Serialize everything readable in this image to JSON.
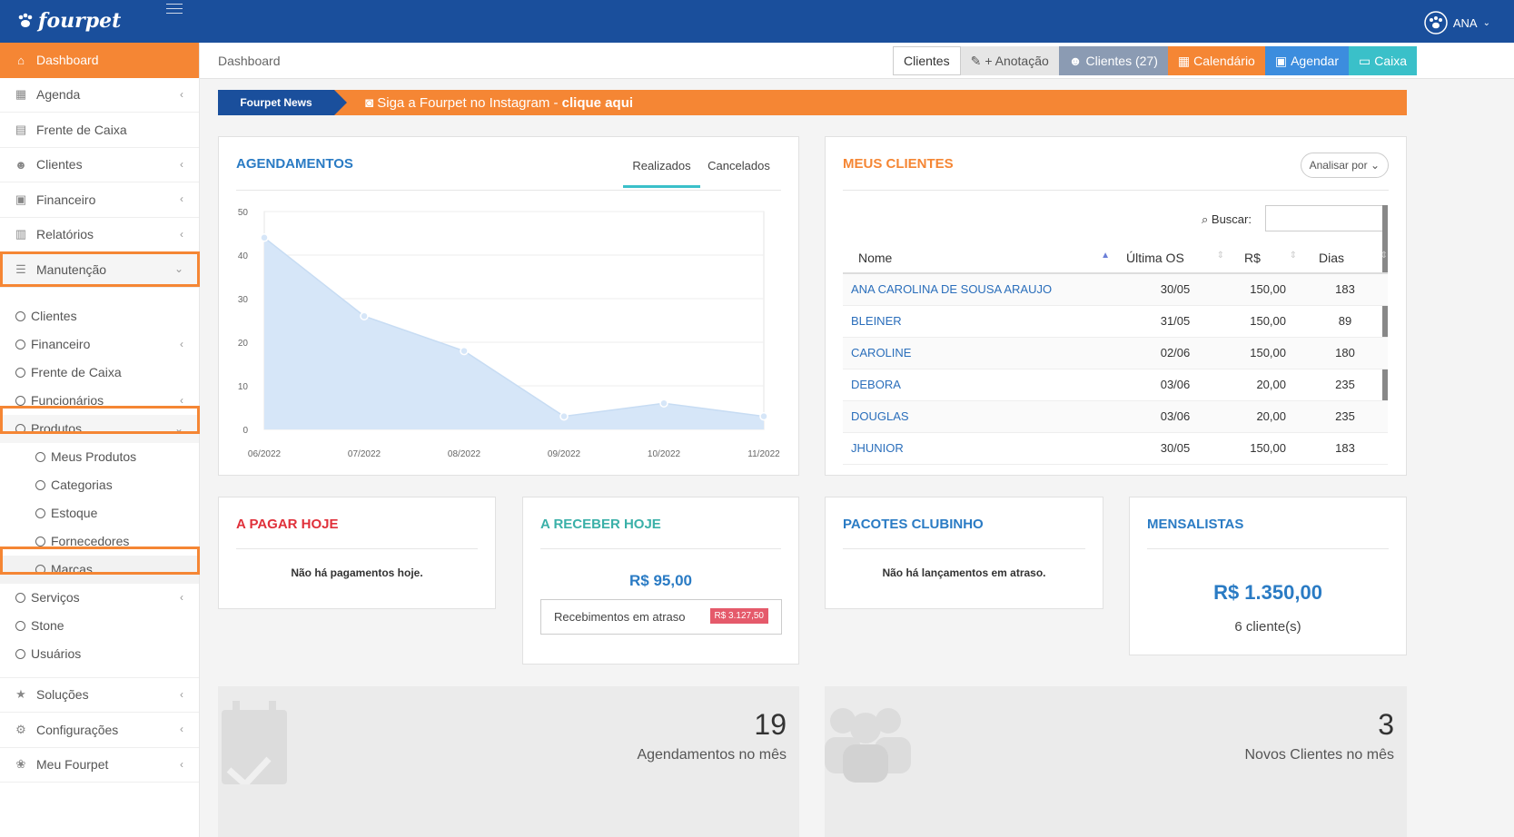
{
  "topbar": {
    "logo": "fourpet",
    "user": "ANA"
  },
  "sidebar": {
    "dashboard": "Dashboard",
    "agenda": "Agenda",
    "frente": "Frente de Caixa",
    "clientes": "Clientes",
    "financeiro": "Financeiro",
    "relatorios": "Relatórios",
    "manutencao": "Manutenção",
    "sub": {
      "clientes": "Clientes",
      "financeiro": "Financeiro",
      "frente": "Frente de Caixa",
      "funcionarios": "Funcionários",
      "produtos": "Produtos",
      "meus": "Meus Produtos",
      "categorias": "Categorias",
      "estoque": "Estoque",
      "fornecedores": "Fornecedores",
      "marcas": "Marcas",
      "servicos": "Serviços",
      "stone": "Stone",
      "usuarios": "Usuários"
    },
    "soluces": "Soluções",
    "config": "Configurações",
    "meu": "Meu Fourpet"
  },
  "header": {
    "crumb": "Dashboard",
    "b1": "Clientes",
    "b2": "+ Anotação",
    "b3": "Clientes (27)",
    "b4": "Calendário",
    "b5": "Agendar",
    "b6": "Caixa"
  },
  "news": {
    "tag": "Fourpet News",
    "msg": "Siga a Fourpet no Instagram - ",
    "link": "clique aqui"
  },
  "agend": {
    "title": "AGENDAMENTOS",
    "tab1": "Realizados",
    "tab2": "Cancelados"
  },
  "chart_data": {
    "type": "area",
    "categories": [
      "06/2022",
      "07/2022",
      "08/2022",
      "09/2022",
      "10/2022",
      "11/2022"
    ],
    "values": [
      44,
      26,
      18,
      3,
      6,
      3
    ],
    "ylim": [
      0,
      50
    ],
    "yticks": [
      0,
      10,
      20,
      30,
      40,
      50
    ],
    "color": "#d6e6f8"
  },
  "meus": {
    "title": "MEUS CLIENTES",
    "analisar": "Analisar por",
    "buscar": "Buscar:",
    "cols": [
      "Nome",
      "Última OS",
      "R$",
      "Dias"
    ],
    "rows": [
      [
        "ANA CAROLINA DE SOUSA ARAUJO",
        "30/05",
        "150,00",
        "183"
      ],
      [
        "BLEINER",
        "31/05",
        "150,00",
        "89"
      ],
      [
        "CAROLINE",
        "02/06",
        "150,00",
        "180"
      ],
      [
        "DEBORA",
        "03/06",
        "20,00",
        "235"
      ],
      [
        "DOUGLAS",
        "03/06",
        "20,00",
        "235"
      ],
      [
        "JHUNIOR",
        "30/05",
        "150,00",
        "183"
      ]
    ]
  },
  "pagar": {
    "title": "A PAGAR HOJE",
    "msg": "Não há pagamentos hoje."
  },
  "receber": {
    "title": "A RECEBER HOJE",
    "valor": "R$ 95,00",
    "atraso": "Recebimentos em atraso",
    "badge": "R$ 3.127,50"
  },
  "pacotes": {
    "title": "PACOTES CLUBINHO",
    "msg": "Não há lançamentos em atraso."
  },
  "mensal": {
    "title": "MENSALISTAS",
    "valor": "R$ 1.350,00",
    "qtd": "6 cliente(s)"
  },
  "stats": [
    {
      "num": "19",
      "label": "Agendamentos no mês"
    },
    {
      "num": "3",
      "label": "Novos Clientes no mês"
    }
  ]
}
